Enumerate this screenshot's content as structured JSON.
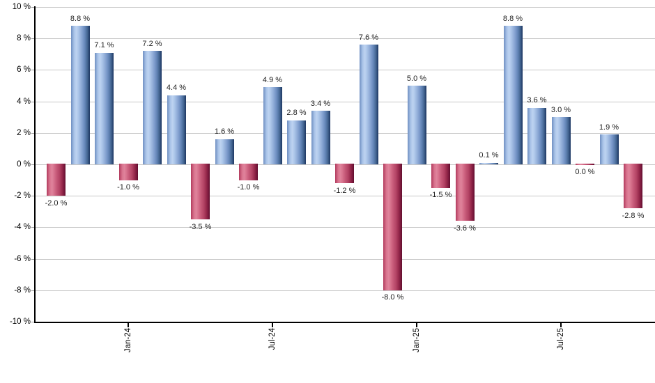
{
  "chart_data": {
    "type": "bar",
    "title": "",
    "xlabel": "",
    "ylabel": "",
    "n_bars": 25,
    "values": [
      -2.0,
      8.8,
      7.1,
      -1.0,
      7.2,
      4.4,
      -3.5,
      1.6,
      -1.0,
      4.9,
      2.8,
      3.4,
      -1.2,
      7.6,
      -8.0,
      5.0,
      -1.5,
      -3.6,
      0.1,
      8.8,
      3.6,
      3.0,
      0.0,
      1.9,
      -2.8
    ],
    "bar_value_labels": [
      "-2.0 %",
      "8.8 %",
      "7.1 %",
      "-1.0 %",
      "7.2 %",
      "4.4 %",
      "-3.5 %",
      "1.6 %",
      "-1.0 %",
      "4.9 %",
      "2.8 %",
      "3.4 %",
      "-1.2 %",
      "7.6 %",
      "-8.0 %",
      "5.0 %",
      "-1.5 %",
      "-3.6 %",
      "0.1 %",
      "8.8 %",
      "3.6 %",
      "3.0 %",
      "0.0 %",
      "1.9 %",
      "-2.8 %"
    ],
    "y_axis": {
      "min": -10,
      "max": 10,
      "tick_step": 2,
      "tick_labels": [
        "10 %",
        "8 %",
        "6 %",
        "4 %",
        "2 %",
        "0 %",
        "-2 %",
        "-4 %",
        "-6 %",
        "-8 %",
        "-10 %"
      ]
    },
    "x_ticks": [
      {
        "bar_index": 3,
        "label": "Jan-24"
      },
      {
        "bar_index": 9,
        "label": "Jul-24"
      },
      {
        "bar_index": 15,
        "label": "Jan-25"
      },
      {
        "bar_index": 21,
        "label": "Jul-25"
      }
    ],
    "legend": false,
    "grid": true,
    "colors": {
      "positive_bar": "#7fa1d4",
      "positive_bar_highlight": "#bed3f1",
      "positive_bar_shadow": "#203a64",
      "negative_bar": "#c34a6b",
      "negative_bar_highlight": "#e0849c",
      "negative_bar_shadow": "#5f0e2d",
      "gridline": "#c6c6c6",
      "axis": "#000000",
      "label_text": "#1e1e1e",
      "background": "#ffffff"
    }
  }
}
